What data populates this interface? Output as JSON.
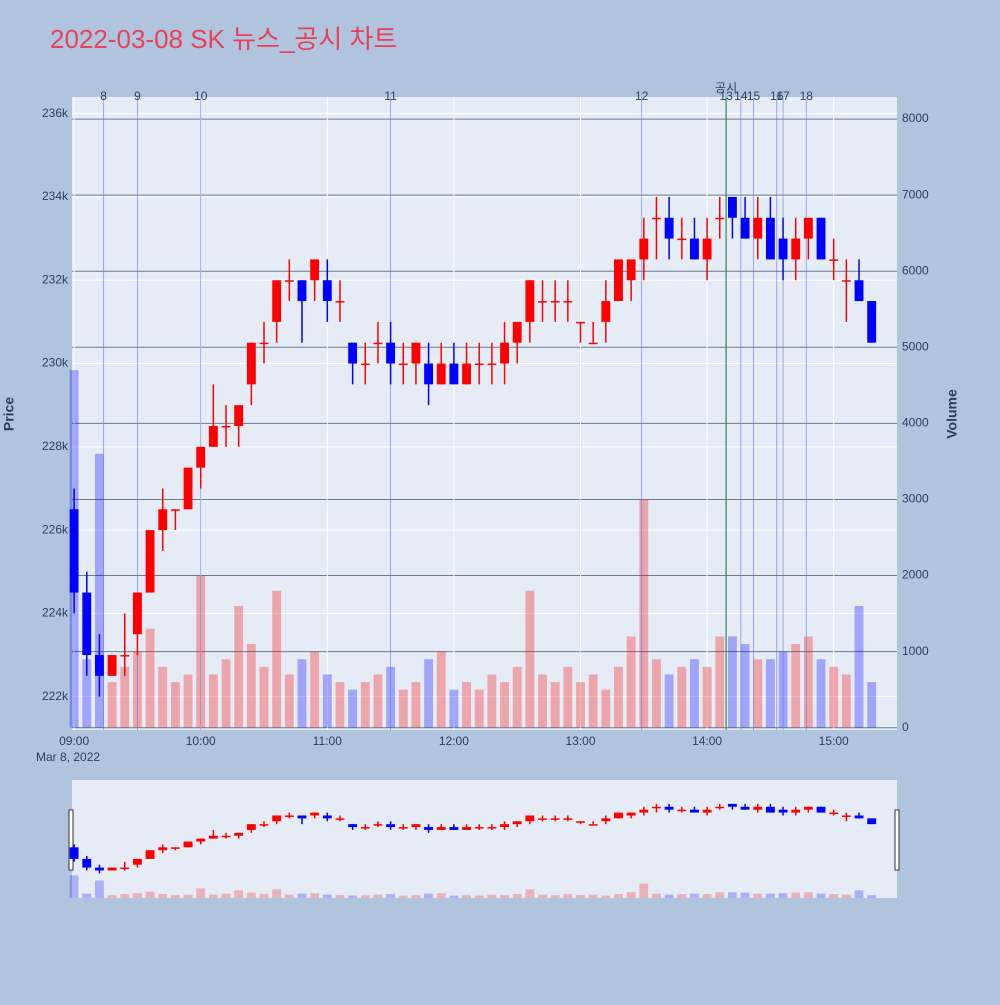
{
  "chart_data": {
    "type": "candlestick",
    "title": "2022-03-08 SK 뉴스_공시 차트",
    "x_subtitle": "Mar 8, 2022",
    "y_label": "Price",
    "y2_label": "Volume",
    "up_color": "#ff0000",
    "down_color": "#0000ff",
    "xlim": [
      "08:59",
      "15:30"
    ],
    "xticks": [
      "09:00",
      "10:00",
      "11:00",
      "12:00",
      "13:00",
      "14:00",
      "15:00"
    ],
    "ylim": [
      221200,
      236400
    ],
    "yticks": [
      {
        "value": 222000,
        "label": "222k"
      },
      {
        "value": 224000,
        "label": "224k"
      },
      {
        "value": 226000,
        "label": "226k"
      },
      {
        "value": 228000,
        "label": "228k"
      },
      {
        "value": 230000,
        "label": "230k"
      },
      {
        "value": 232000,
        "label": "232k"
      },
      {
        "value": 234000,
        "label": "234k"
      },
      {
        "value": 236000,
        "label": "236k"
      }
    ],
    "y2lim": [
      -30,
      8290
    ],
    "y2ticks": [
      0,
      1000,
      2000,
      3000,
      4000,
      5000,
      6000,
      7000,
      8000
    ],
    "news": [
      {
        "x": "09:14",
        "label": "8"
      },
      {
        "x": "09:30",
        "label": "9"
      },
      {
        "x": "10:00",
        "label": "10"
      },
      {
        "x": "11:30",
        "label": "11"
      },
      {
        "x": "13:29",
        "label": "12"
      },
      {
        "x": "14:09",
        "label": "13"
      },
      {
        "x": "14:16",
        "label": "14"
      },
      {
        "x": "14:22",
        "label": "15"
      },
      {
        "x": "14:33",
        "label": "16"
      },
      {
        "x": "14:36",
        "label": "17"
      },
      {
        "x": "14:47",
        "label": "18"
      }
    ],
    "disclosure": {
      "x": "14:09",
      "label": "공시",
      "color": "#2e8b57"
    },
    "x": [
      "09:00",
      "09:06",
      "09:12",
      "09:18",
      "09:24",
      "09:30",
      "09:36",
      "09:42",
      "09:48",
      "09:54",
      "10:00",
      "10:06",
      "10:12",
      "10:18",
      "10:24",
      "10:30",
      "10:36",
      "10:42",
      "10:48",
      "10:54",
      "11:00",
      "11:06",
      "11:12",
      "11:18",
      "11:24",
      "11:30",
      "11:36",
      "11:42",
      "11:48",
      "11:54",
      "12:00",
      "12:06",
      "12:12",
      "12:18",
      "12:24",
      "12:30",
      "12:36",
      "12:42",
      "12:48",
      "12:54",
      "13:00",
      "13:06",
      "13:12",
      "13:18",
      "13:24",
      "13:30",
      "13:36",
      "13:42",
      "13:48",
      "13:54",
      "14:00",
      "14:06",
      "14:12",
      "14:18",
      "14:24",
      "14:30",
      "14:36",
      "14:42",
      "14:48",
      "14:54",
      "15:00",
      "15:06",
      "15:12",
      "15:18"
    ],
    "open": [
      226500,
      224500,
      223000,
      222500,
      223000,
      223500,
      224500,
      226000,
      226500,
      226500,
      227500,
      228000,
      228500,
      228500,
      229500,
      230500,
      231000,
      232000,
      232000,
      232000,
      232000,
      231500,
      230500,
      230000,
      230500,
      230500,
      230000,
      230000,
      230000,
      229500,
      230000,
      229500,
      230000,
      230000,
      230000,
      230500,
      231000,
      231500,
      231500,
      231500,
      231000,
      230500,
      231000,
      231500,
      232000,
      232500,
      233500,
      233500,
      233000,
      233000,
      232500,
      233500,
      234000,
      233500,
      233000,
      233500,
      233000,
      232500,
      233000,
      233500,
      232500,
      232000,
      232000,
      231500
    ],
    "high": [
      227000,
      225000,
      223500,
      223000,
      224000,
      224500,
      226000,
      227000,
      226500,
      227500,
      228000,
      229500,
      229000,
      229000,
      230500,
      231000,
      232000,
      232500,
      232000,
      232500,
      232500,
      232000,
      230500,
      230500,
      231000,
      231000,
      230500,
      230500,
      230500,
      230500,
      230500,
      230500,
      230500,
      230500,
      231000,
      231000,
      232000,
      232000,
      232000,
      232000,
      231000,
      231000,
      232000,
      232500,
      232500,
      233500,
      234000,
      234000,
      233500,
      233500,
      233500,
      234000,
      234000,
      234000,
      234000,
      234000,
      233500,
      233500,
      233500,
      233500,
      233000,
      232500,
      232500,
      231500
    ],
    "low": [
      224000,
      222500,
      222000,
      222500,
      222500,
      223000,
      224500,
      225500,
      226000,
      226500,
      227000,
      228000,
      228000,
      228000,
      229000,
      230000,
      230500,
      231500,
      230500,
      231500,
      231000,
      231000,
      229500,
      229500,
      230000,
      229500,
      229500,
      229500,
      229000,
      229500,
      229500,
      229500,
      229500,
      229500,
      229500,
      230000,
      230500,
      231000,
      231000,
      231000,
      230500,
      230500,
      230500,
      231500,
      231500,
      232000,
      232500,
      232500,
      232500,
      232500,
      232000,
      233000,
      233000,
      233000,
      232500,
      232500,
      232000,
      232000,
      232500,
      232500,
      232000,
      231000,
      231500,
      230500
    ],
    "close": [
      224500,
      223000,
      222500,
      223000,
      223000,
      224500,
      226000,
      226500,
      226500,
      227500,
      228000,
      228500,
      228500,
      229000,
      230500,
      230500,
      232000,
      232000,
      231500,
      232500,
      231500,
      231500,
      230000,
      230000,
      230500,
      230000,
      230000,
      230500,
      229500,
      230000,
      229500,
      230000,
      230000,
      230000,
      230500,
      231000,
      232000,
      231500,
      231500,
      231500,
      231000,
      230500,
      231500,
      232500,
      232500,
      233000,
      233500,
      233000,
      233000,
      232500,
      233000,
      233500,
      233500,
      233000,
      233500,
      232500,
      232500,
      233000,
      233500,
      232500,
      232500,
      232000,
      231500,
      230500
    ],
    "volume": [
      4700,
      900,
      3600,
      600,
      800,
      1000,
      1300,
      800,
      600,
      700,
      2000,
      700,
      900,
      1600,
      1100,
      800,
      1800,
      700,
      900,
      1000,
      700,
      600,
      500,
      600,
      700,
      800,
      500,
      600,
      900,
      1000,
      500,
      600,
      500,
      700,
      600,
      800,
      1800,
      700,
      600,
      800,
      600,
      700,
      500,
      800,
      1200,
      3000,
      900,
      700,
      800,
      900,
      800,
      1200,
      1200,
      1100,
      900,
      900,
      1000,
      1100,
      1200,
      900,
      800,
      700,
      1600,
      600
    ]
  }
}
